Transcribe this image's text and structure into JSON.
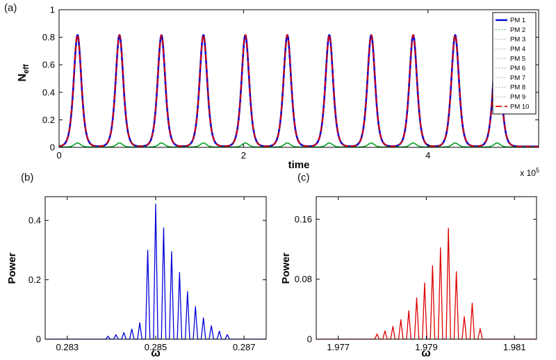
{
  "figure": {
    "background": "#ffffff"
  },
  "chart_data": [
    {
      "id": "a",
      "type": "line",
      "panel_label": "(a)",
      "xlabel": "time",
      "x_scale_prefix": "x 10",
      "x_scale_exponent": "5",
      "ylabel_main": "N",
      "ylabel_sub": "eff",
      "xlim": [
        0,
        5.2
      ],
      "ylim": [
        0,
        1
      ],
      "xticks": [
        0,
        2,
        4
      ],
      "yticks": [
        0,
        0.2,
        0.4,
        0.6,
        0.8,
        1
      ],
      "grid": false,
      "legend_position": "top-right-inside",
      "peak_amplitude": 0.81,
      "peak_period": 0.455,
      "legend": [
        {
          "label": "PM 1",
          "color": "#0000dd",
          "dash": "solid",
          "width": 2.4
        },
        {
          "label": "PM 2",
          "color": "#00a020",
          "dash": "dot",
          "width": 1.2
        },
        {
          "label": "PM 3",
          "color": "#9aa69a",
          "dash": "dot",
          "width": 1.2
        },
        {
          "label": "PM 4",
          "color": "#9aa69a",
          "dash": "dot",
          "width": 1.2
        },
        {
          "label": "PM 5",
          "color": "#9aa69a",
          "dash": "dot",
          "width": 1.2
        },
        {
          "label": "PM 6",
          "color": "#9aa69a",
          "dash": "dot",
          "width": 1.2
        },
        {
          "label": "PM 7",
          "color": "#9aa69a",
          "dash": "dot",
          "width": 1.2
        },
        {
          "label": "PM 8",
          "color": "#9aa69a",
          "dash": "dot",
          "width": 1.2
        },
        {
          "label": "PM 9",
          "color": "#9aa69a",
          "dash": "dot",
          "width": 1.2
        },
        {
          "label": "PM 10",
          "color": "#dd0000",
          "dash": "dash",
          "width": 1.8
        }
      ],
      "series": [
        {
          "name": "PM 1",
          "color": "#0000dd",
          "dash": "solid",
          "width": 2.6,
          "pulse": {
            "centers": [
              0.2,
              0.655,
              1.11,
              1.565,
              2.02,
              2.475,
              2.93,
              3.385,
              3.84,
              4.295,
              4.75
            ],
            "amplitude": 0.81,
            "halfwidth": 0.055,
            "base": 0.006
          }
        },
        {
          "name": "PM 2",
          "color": "#00a020",
          "dash": "solid",
          "width": 1.6,
          "pulse": {
            "centers": [
              0.2,
              0.655,
              1.11,
              1.565,
              2.02,
              2.475,
              2.93,
              3.385,
              3.84,
              4.295,
              4.75
            ],
            "amplitude": 0.03,
            "halfwidth": 0.045,
            "base": 0.002
          }
        },
        {
          "name": "PM 10",
          "color": "#dd0000",
          "dash": "dash",
          "width": 1.9,
          "pulse": {
            "centers": [
              0.2,
              0.655,
              1.11,
              1.565,
              2.02,
              2.475,
              2.93,
              3.385,
              3.84,
              4.295,
              4.75
            ],
            "amplitude": 0.81,
            "halfwidth": 0.055,
            "base": 0.006
          }
        }
      ]
    },
    {
      "id": "b",
      "type": "line",
      "panel_label": "(b)",
      "xlabel": "ω",
      "ylabel": "Power",
      "xlim": [
        0.2825,
        0.2875
      ],
      "ylim": [
        0,
        0.48
      ],
      "xticks": [
        0.283,
        0.285,
        0.287
      ],
      "yticks": [
        0,
        0.2,
        0.4
      ],
      "grid": false,
      "series": [
        {
          "name": "power spectrum (blue)",
          "color": "#0000dd",
          "dash": "solid",
          "width": 1.3,
          "spike_halfwidth": 5e-05,
          "spikes": [
            [
              0.28392,
              0.01
            ],
            [
              0.2841,
              0.015
            ],
            [
              0.28428,
              0.022
            ],
            [
              0.28446,
              0.034
            ],
            [
              0.28464,
              0.055
            ],
            [
              0.28482,
              0.3
            ],
            [
              0.285,
              0.455
            ],
            [
              0.28518,
              0.375
            ],
            [
              0.28536,
              0.295
            ],
            [
              0.28554,
              0.225
            ],
            [
              0.28572,
              0.16
            ],
            [
              0.2859,
              0.11
            ],
            [
              0.28608,
              0.072
            ],
            [
              0.28626,
              0.045
            ],
            [
              0.28644,
              0.027
            ],
            [
              0.28662,
              0.015
            ]
          ]
        }
      ]
    },
    {
      "id": "c",
      "type": "line",
      "panel_label": "(c)",
      "xlabel": "ω",
      "ylabel": "Power",
      "xlim": [
        1.9765,
        1.9815
      ],
      "ylim": [
        0,
        0.19
      ],
      "xticks": [
        1.977,
        1.979,
        1.981
      ],
      "yticks": [
        0,
        0.08,
        0.16
      ],
      "grid": false,
      "series": [
        {
          "name": "power spectrum (red)",
          "color": "#dd0000",
          "dash": "solid",
          "width": 1.3,
          "spike_halfwidth": 5e-05,
          "spikes": [
            [
              1.97788,
              0.007
            ],
            [
              1.97806,
              0.011
            ],
            [
              1.97824,
              0.017
            ],
            [
              1.97842,
              0.026
            ],
            [
              1.9786,
              0.038
            ],
            [
              1.97878,
              0.055
            ],
            [
              1.97896,
              0.075
            ],
            [
              1.97914,
              0.098
            ],
            [
              1.97932,
              0.122
            ],
            [
              1.9795,
              0.148
            ],
            [
              1.97968,
              0.09
            ],
            [
              1.97986,
              0.03
            ],
            [
              1.98004,
              0.048
            ],
            [
              1.98022,
              0.014
            ]
          ]
        }
      ]
    }
  ]
}
